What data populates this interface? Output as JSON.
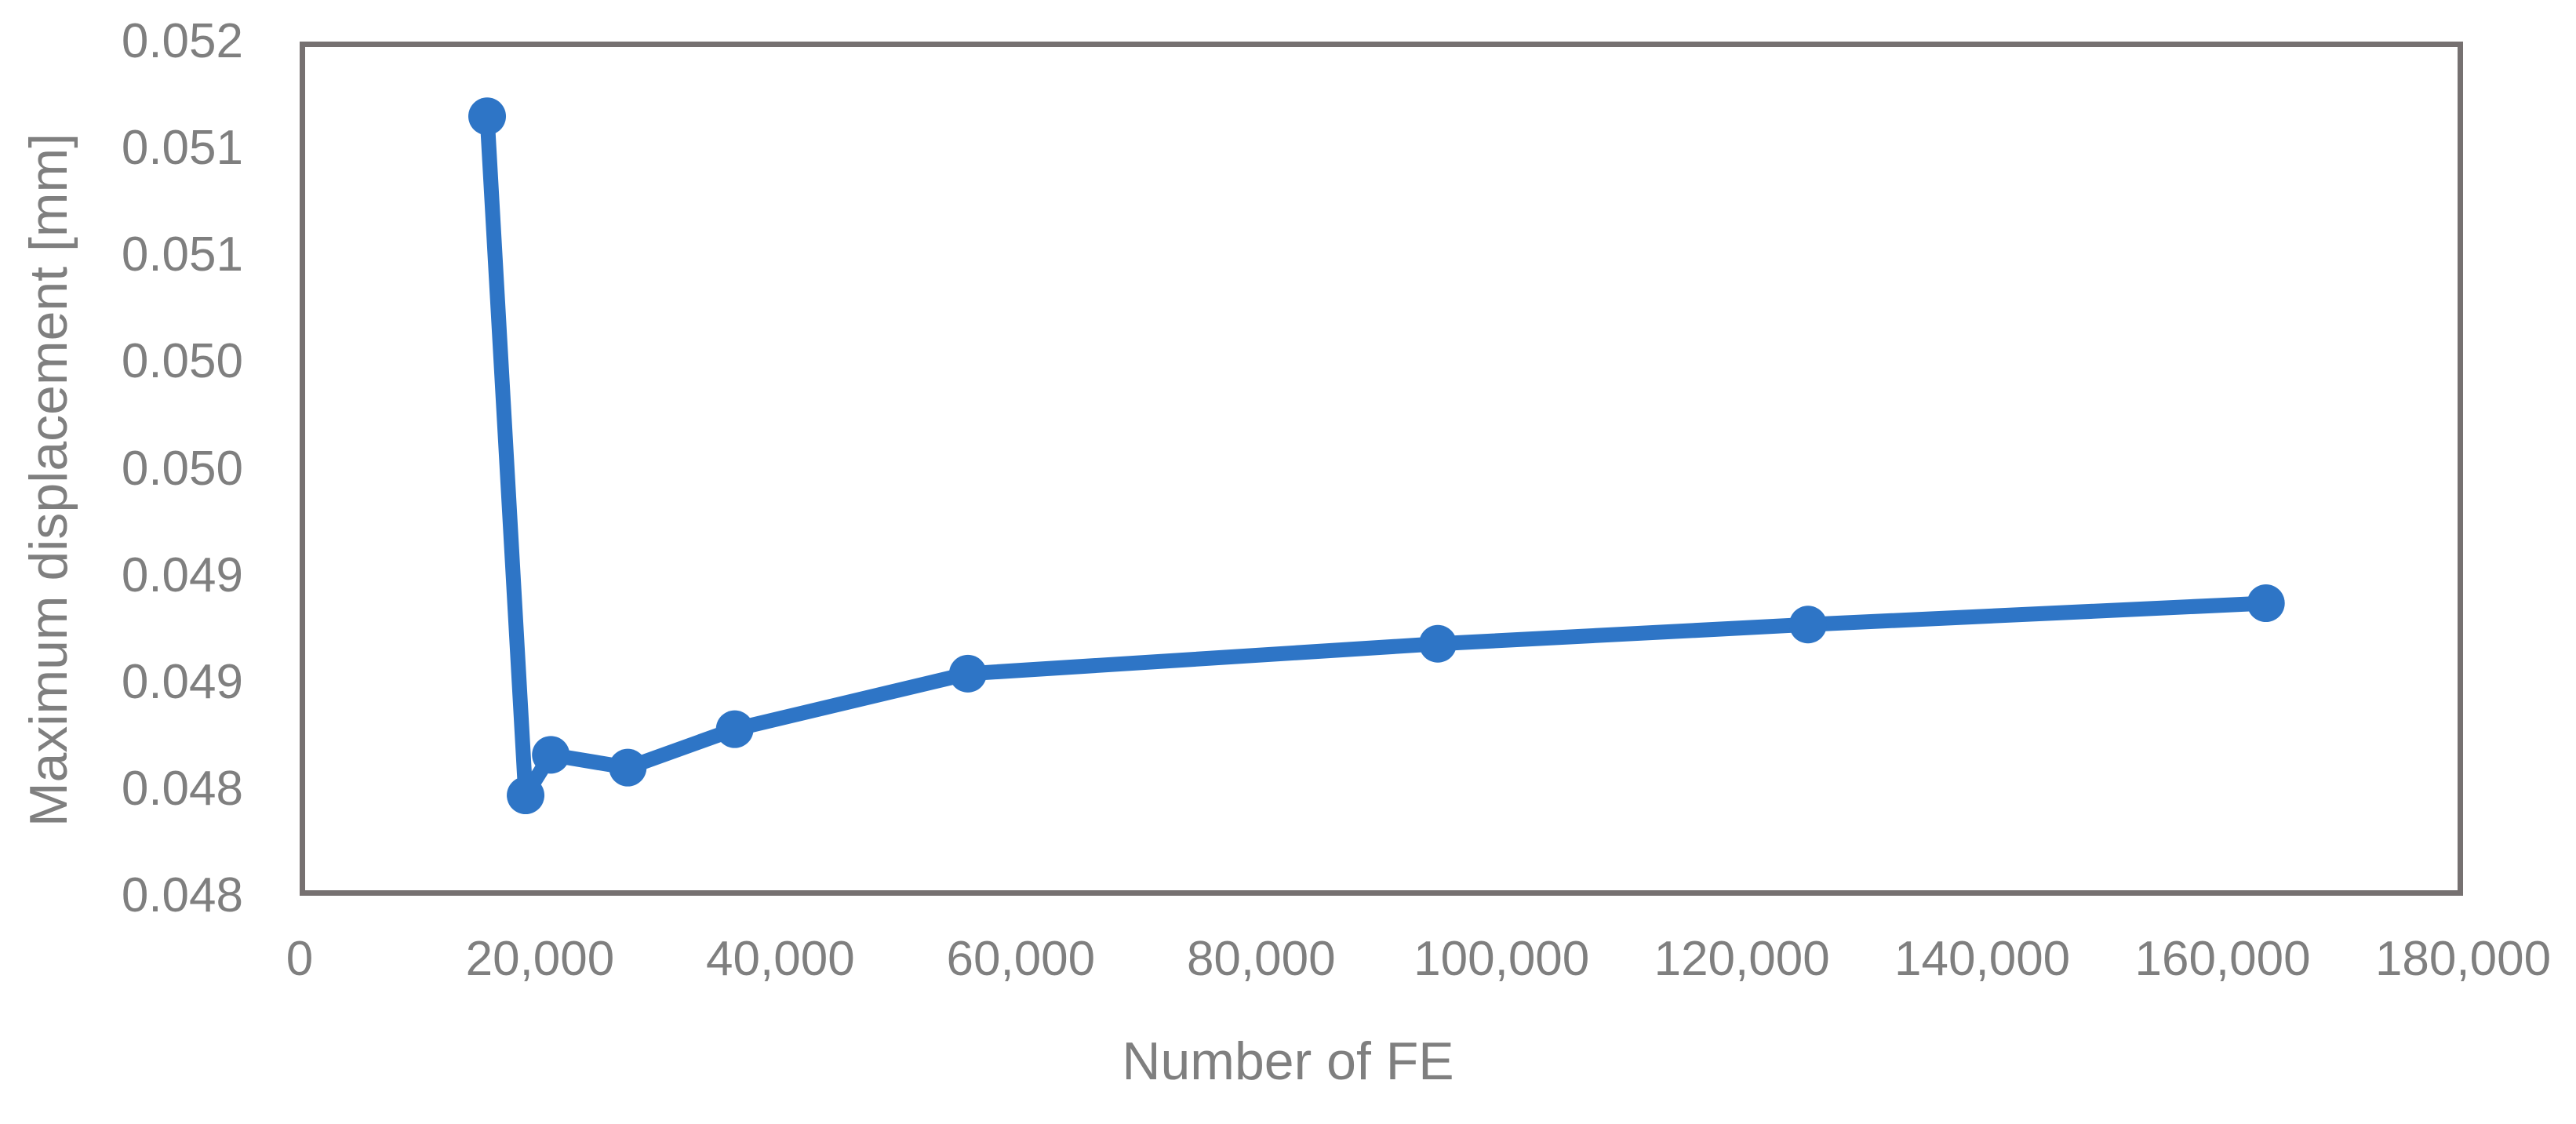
{
  "chart_data": {
    "type": "line",
    "title": "",
    "xlabel": "Number of FE",
    "ylabel": "Maximum displacement [mm]",
    "xlim": [
      0,
      180000
    ],
    "ylim": [
      0.048,
      0.052
    ],
    "grid": false,
    "legend": "none",
    "x_tick_values": [
      0,
      20000,
      40000,
      60000,
      80000,
      100000,
      120000,
      140000,
      160000,
      180000
    ],
    "x_tick_labels": [
      "0",
      "20,000",
      "40,000",
      "60,000",
      "80,000",
      "100,000",
      "120,000",
      "140,000",
      "160,000",
      "180,000"
    ],
    "y_tick_values": [
      0.052,
      0.0515,
      0.051,
      0.0505,
      0.05,
      0.0495,
      0.049,
      0.0485,
      0.048
    ],
    "y_tick_labels": [
      "0.052",
      "0.051",
      "0.051",
      "0.050",
      "0.050",
      "0.049",
      "0.049",
      "0.048",
      "0.048"
    ],
    "series": [
      {
        "name": "Maximum displacement",
        "x": [
          15600,
          18800,
          20900,
          27300,
          36200,
          55600,
          94700,
          125500,
          163600
        ],
        "y": [
          0.05165,
          0.04847,
          0.04866,
          0.0486,
          0.04878,
          0.04904,
          0.04918,
          0.04927,
          0.04937
        ]
      }
    ],
    "colors": {
      "line": "#2E75C6",
      "marker": "#2E75C6",
      "frame": "#767171",
      "text": "#7F7F7F"
    }
  }
}
